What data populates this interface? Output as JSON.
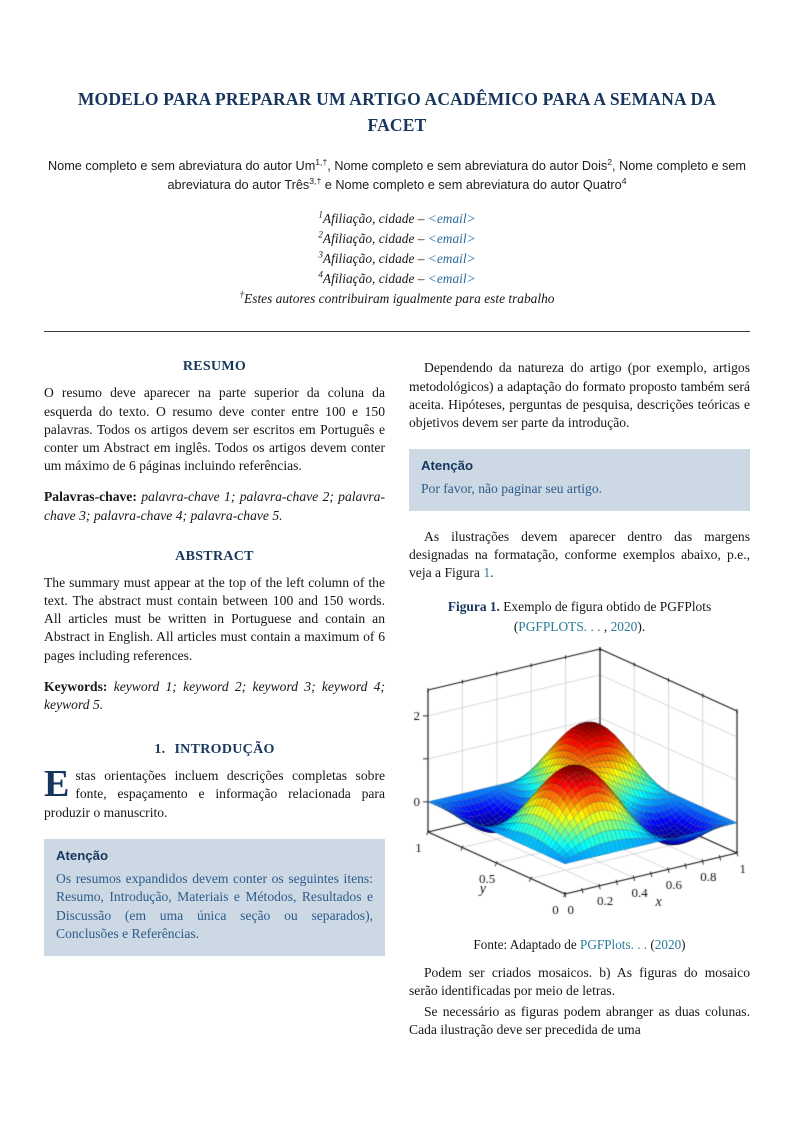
{
  "colors": {
    "heading_navy": "#17365d",
    "citation_teal": "#2b7a99",
    "email_blue": "#2b6a9b",
    "attention_box_bg": "#ccd8e3",
    "attention_body_text": "#2d5c8c"
  },
  "header": {
    "title": "MODELO PARA PREPARAR UM ARTIGO ACADÊMICO PARA A SEMANA DA FACET",
    "authors": {
      "parts": [
        {
          "t": "Nome completo e sem abreviatura do autor Um"
        },
        {
          "sup": "1,†"
        },
        {
          "t": ", Nome completo e sem abreviatura do autor Dois"
        },
        {
          "sup": "2"
        },
        {
          "t": ", Nome completo e sem abreviatura do autor Três"
        },
        {
          "sup": "3,†"
        },
        {
          "t": " e Nome completo e sem abreviatura do autor Quatro"
        },
        {
          "sup": "4"
        }
      ]
    }
  },
  "affiliations": [
    {
      "sup": "1",
      "text": "Afiliação, cidade – ",
      "email": "<email>"
    },
    {
      "sup": "2",
      "text": "Afiliação, cidade – ",
      "email": "<email>"
    },
    {
      "sup": "3",
      "text": "Afiliação, cidade – ",
      "email": "<email>"
    },
    {
      "sup": "4",
      "text": "Afiliação, cidade – ",
      "email": "<email>"
    }
  ],
  "footnote": {
    "sup": "†",
    "text": "Estes autores contribuiram igualmente para este trabalho"
  },
  "left_column": {
    "resumo": {
      "heading": "RESUMO",
      "body": "O resumo deve aparecer na parte superior da coluna da esquerda do texto. O resumo deve conter entre 100 e 150 palavras. Todos os artigos devem ser escritos em Português e conter um Abstract em inglês. Todos os artigos devem conter um máximo de 6 páginas incluindo referências.",
      "keywords_label": "Palavras-chave:",
      "keywords": " palavra-chave 1; palavra-chave 2; palavra-chave 3; palavra-chave 4; palavra-chave 5."
    },
    "abstract": {
      "heading": "ABSTRACT",
      "body": "The summary must appear at the top of the left column of the text. The abstract must contain between 100 and 150 words. All articles must be written in Portuguese and contain an Abstract in English. All articles must contain a maximum of 6 pages including references.",
      "keywords_label": "Keywords:",
      "keywords": " keyword 1; keyword 2; keyword 3; keyword 4; keyword 5."
    },
    "intro": {
      "number": "1.",
      "heading": "INTRODUÇÃO",
      "dropcap": "E",
      "body": "stas orientações incluem descrições completas sobre fonte, espaçamento e informação relacionada para produzir o manuscrito."
    },
    "attention": {
      "header": "Atenção",
      "body": "Os resumos expandidos devem conter os seguintes itens: Resumo, Introdução, Materiais e Métodos, Resultados e Discussão (em uma única seção ou separados), Conclusões e Referências."
    }
  },
  "right_column": {
    "p1": "Dependendo da natureza do artigo (por exemplo, artigos metodológicos) a adaptação do formato proposto também será aceita. Hipóteses, perguntas de pesquisa, descrições teóricas e objetivos devem ser parte da introdução.",
    "attention": {
      "header": "Atenção",
      "body": "Por favor, não paginar seu artigo."
    },
    "p2": {
      "before": "As ilustrações devem aparecer dentro das margens designadas na formatação, conforme exemplos abaixo, p.e., veja a Figura ",
      "link": "1",
      "after": "."
    },
    "figure": {
      "caption_label": "Figura 1.",
      "caption_text": " Exemplo de figura obtido de PGFPlots ",
      "cite_open": "(",
      "cite_text": "PGFPLOTS. . . ",
      "cite_sep": ", ",
      "cite_year": "2020",
      "cite_close": ").",
      "fonte_prefix": "Fonte: Adaptado de ",
      "fonte_link": "PGFPlots. . . ",
      "fonte_mid": " (",
      "fonte_year": "2020",
      "fonte_close": ")"
    },
    "p3": "Podem ser criados mosaicos. b) As figuras do mosaico serão identificadas por meio de letras.",
    "p4": "Se necessário as figuras podem abranger as duas colunas. Cada ilustração deve ser precedida de uma"
  },
  "chart_data": {
    "type": "surface3d",
    "title": "",
    "xlabel": "x",
    "ylabel": "y",
    "x_range": [
      0,
      1
    ],
    "y_range": [
      0,
      1
    ],
    "z_range": [
      -0.7,
      2.6
    ],
    "x_ticks": [
      0,
      0.2,
      0.4,
      0.6,
      0.8,
      1
    ],
    "x_tick_labels": [
      "0",
      "0.2",
      "0.4",
      "0.6",
      "0.8",
      "1"
    ],
    "x_minor_step": 0.1,
    "y_ticks": [
      0,
      0.25,
      0.5,
      0.75,
      1
    ],
    "y_tick_labels_at": [
      0,
      0.5,
      1
    ],
    "y_tick_labels": [
      "0",
      "0.5",
      "1"
    ],
    "z_ticks": [
      0,
      1,
      2
    ],
    "z_tick_labels_at": [
      0,
      2
    ],
    "z_tick_labels": [
      "0",
      "2"
    ],
    "grid": true,
    "colormap": "jet",
    "samples": 40,
    "formula": "sin(2*PI*x)*sin(2*PI*y) + sin(PI*x)*sin(PI*y)"
  }
}
